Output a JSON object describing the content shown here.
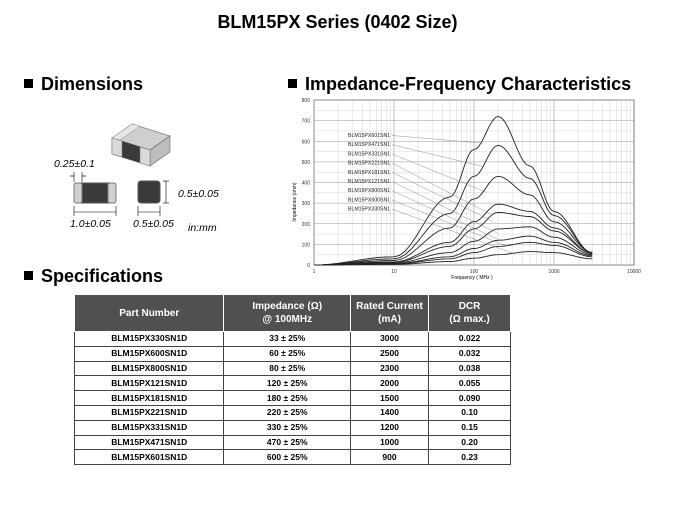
{
  "title": "BLM15PX Series (0402 Size)",
  "dimensions": {
    "heading": "Dimensions",
    "label_gap": "0.25±0.1",
    "label_height": "0.5±0.05",
    "label_length": "1.0±0.05",
    "label_width": "0.5±0.05",
    "units": "in:mm"
  },
  "impedance": {
    "heading": "Impedance-Frequency Characteristics"
  },
  "specifications": {
    "heading": "Specifications",
    "columns": [
      "Part Number",
      "Impedance (Ω) @ 100MHz",
      "Rated Current (mA)",
      "DCR (Ω max.)"
    ],
    "column_lines": [
      [
        "Part Number"
      ],
      [
        "Impedance (Ω)",
        "@ 100MHz"
      ],
      [
        "Rated Current",
        "(mA)"
      ],
      [
        "DCR",
        "(Ω max.)"
      ]
    ],
    "rows": [
      [
        "BLM15PX330SN1D",
        "33 ± 25%",
        "3000",
        "0.022"
      ],
      [
        "BLM15PX600SN1D",
        "60 ± 25%",
        "2500",
        "0.032"
      ],
      [
        "BLM15PX800SN1D",
        "80 ± 25%",
        "2300",
        "0.038"
      ],
      [
        "BLM15PX121SN1D",
        "120 ± 25%",
        "2000",
        "0.055"
      ],
      [
        "BLM15PX181SN1D",
        "180 ± 25%",
        "1500",
        "0.090"
      ],
      [
        "BLM15PX221SN1D",
        "220 ± 25%",
        "1400",
        "0.10"
      ],
      [
        "BLM15PX331SN1D",
        "330 ± 25%",
        "1200",
        "0.15"
      ],
      [
        "BLM15PX471SN1D",
        "470 ± 25%",
        "1000",
        "0.20"
      ],
      [
        "BLM15PX601SN1D",
        "600 ± 25%",
        "900",
        "0.23"
      ]
    ]
  },
  "chart_data": {
    "type": "line",
    "title": "",
    "xlabel": "Frequency ( MHz )",
    "ylabel": "Impedance (ohm)",
    "xscale": "log",
    "xlim": [
      1,
      10000
    ],
    "ylim": [
      0,
      800
    ],
    "xticks": [
      "1",
      "10",
      "100",
      "1000",
      "10000"
    ],
    "yticks": [
      "0",
      "100",
      "200",
      "300",
      "400",
      "500",
      "600",
      "700",
      "800"
    ],
    "grid": true,
    "legend_placement": "top-left",
    "series": [
      {
        "name": "BLM15PX601SN1",
        "peak_freq": 200,
        "peak": 720,
        "values_at": {
          "x": [
            1,
            10,
            50,
            100,
            200,
            500,
            1000,
            3000
          ],
          "y": [
            0,
            40,
            330,
            560,
            720,
            480,
            260,
            60
          ]
        }
      },
      {
        "name": "BLM15PX471SN1",
        "peak_freq": 210,
        "peak": 580,
        "values_at": {
          "x": [
            1,
            10,
            50,
            100,
            200,
            500,
            1000,
            3000
          ],
          "y": [
            0,
            30,
            250,
            430,
            580,
            420,
            240,
            60
          ]
        }
      },
      {
        "name": "BLM15PX331SN1",
        "peak_freq": 220,
        "peak": 430,
        "values_at": {
          "x": [
            1,
            10,
            50,
            100,
            200,
            500,
            1000,
            3000
          ],
          "y": [
            0,
            22,
            180,
            320,
            430,
            340,
            210,
            60
          ]
        }
      },
      {
        "name": "BLM15PX221SN1",
        "peak_freq": 250,
        "peak": 300,
        "values_at": {
          "x": [
            1,
            10,
            50,
            100,
            200,
            500,
            1000,
            3000
          ],
          "y": [
            0,
            15,
            110,
            210,
            295,
            260,
            180,
            55
          ]
        }
      },
      {
        "name": "BLM15PX181SN1",
        "peak_freq": 260,
        "peak": 260,
        "values_at": {
          "x": [
            1,
            10,
            50,
            100,
            200,
            500,
            1000,
            3000
          ],
          "y": [
            0,
            12,
            90,
            175,
            255,
            235,
            165,
            55
          ]
        }
      },
      {
        "name": "BLM15PX121SN1",
        "peak_freq": 300,
        "peak": 190,
        "values_at": {
          "x": [
            1,
            10,
            50,
            100,
            200,
            500,
            1000,
            3000
          ],
          "y": [
            0,
            9,
            60,
            115,
            175,
            185,
            135,
            50
          ]
        }
      },
      {
        "name": "BLM15PX800SN1",
        "peak_freq": 350,
        "peak": 140,
        "values_at": {
          "x": [
            1,
            10,
            50,
            100,
            200,
            500,
            1000,
            3000
          ],
          "y": [
            0,
            6,
            40,
            80,
            120,
            140,
            110,
            45
          ]
        }
      },
      {
        "name": "BLM15PX600SN1",
        "peak_freq": 400,
        "peak": 110,
        "values_at": {
          "x": [
            1,
            10,
            50,
            100,
            200,
            500,
            1000,
            3000
          ],
          "y": [
            0,
            5,
            30,
            60,
            90,
            110,
            95,
            40
          ]
        }
      },
      {
        "name": "BLM15PX330SN1",
        "peak_freq": 500,
        "peak": 65,
        "values_at": {
          "x": [
            1,
            10,
            50,
            100,
            200,
            500,
            1000,
            3000
          ],
          "y": [
            0,
            3,
            17,
            33,
            50,
            65,
            60,
            30
          ]
        }
      }
    ]
  }
}
